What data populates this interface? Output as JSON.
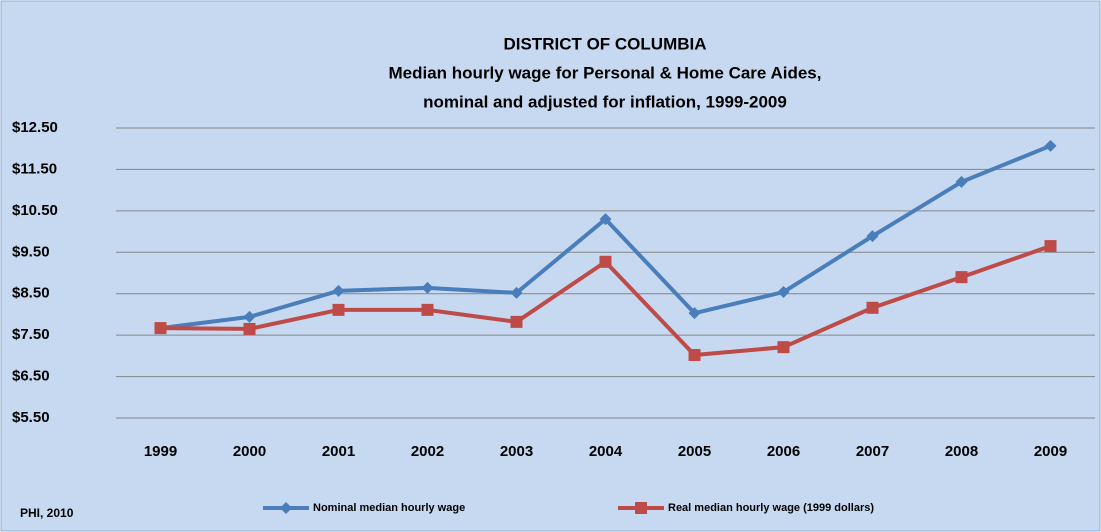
{
  "chart_data": {
    "type": "line",
    "title": [
      "DISTRICT OF COLUMBIA",
      "Median hourly wage for Personal & Home Care Aides,",
      "nominal and adjusted for inflation, 1999-2009"
    ],
    "categories": [
      "1999",
      "2000",
      "2001",
      "2002",
      "2003",
      "2004",
      "2005",
      "2006",
      "2007",
      "2008",
      "2009"
    ],
    "series": [
      {
        "name": "Nominal median hourly wage",
        "color": "#4a7ebb",
        "marker": "diamond",
        "values": [
          7.67,
          7.94,
          8.57,
          8.64,
          8.52,
          10.3,
          8.03,
          8.54,
          9.89,
          11.2,
          12.07
        ]
      },
      {
        "name": "Real median hourly wage (1999 dollars)",
        "color": "#be4b48",
        "marker": "square",
        "values": [
          7.67,
          7.65,
          8.11,
          8.11,
          7.82,
          9.27,
          7.02,
          7.21,
          8.16,
          8.9,
          9.65
        ]
      }
    ],
    "ylim": [
      5.5,
      12.5
    ],
    "yticks": [
      {
        "value": 5.5,
        "label": "$5.50"
      },
      {
        "value": 6.5,
        "label": "$6.50"
      },
      {
        "value": 7.5,
        "label": "$7.50"
      },
      {
        "value": 8.5,
        "label": "$8.50"
      },
      {
        "value": 9.5,
        "label": "$9.50"
      },
      {
        "value": 10.5,
        "label": "$10.50"
      },
      {
        "value": 11.5,
        "label": "$11.50"
      },
      {
        "value": 12.5,
        "label": "$12.50"
      }
    ],
    "grid": true,
    "legend": "bottom",
    "note": "PHI, 2010"
  }
}
